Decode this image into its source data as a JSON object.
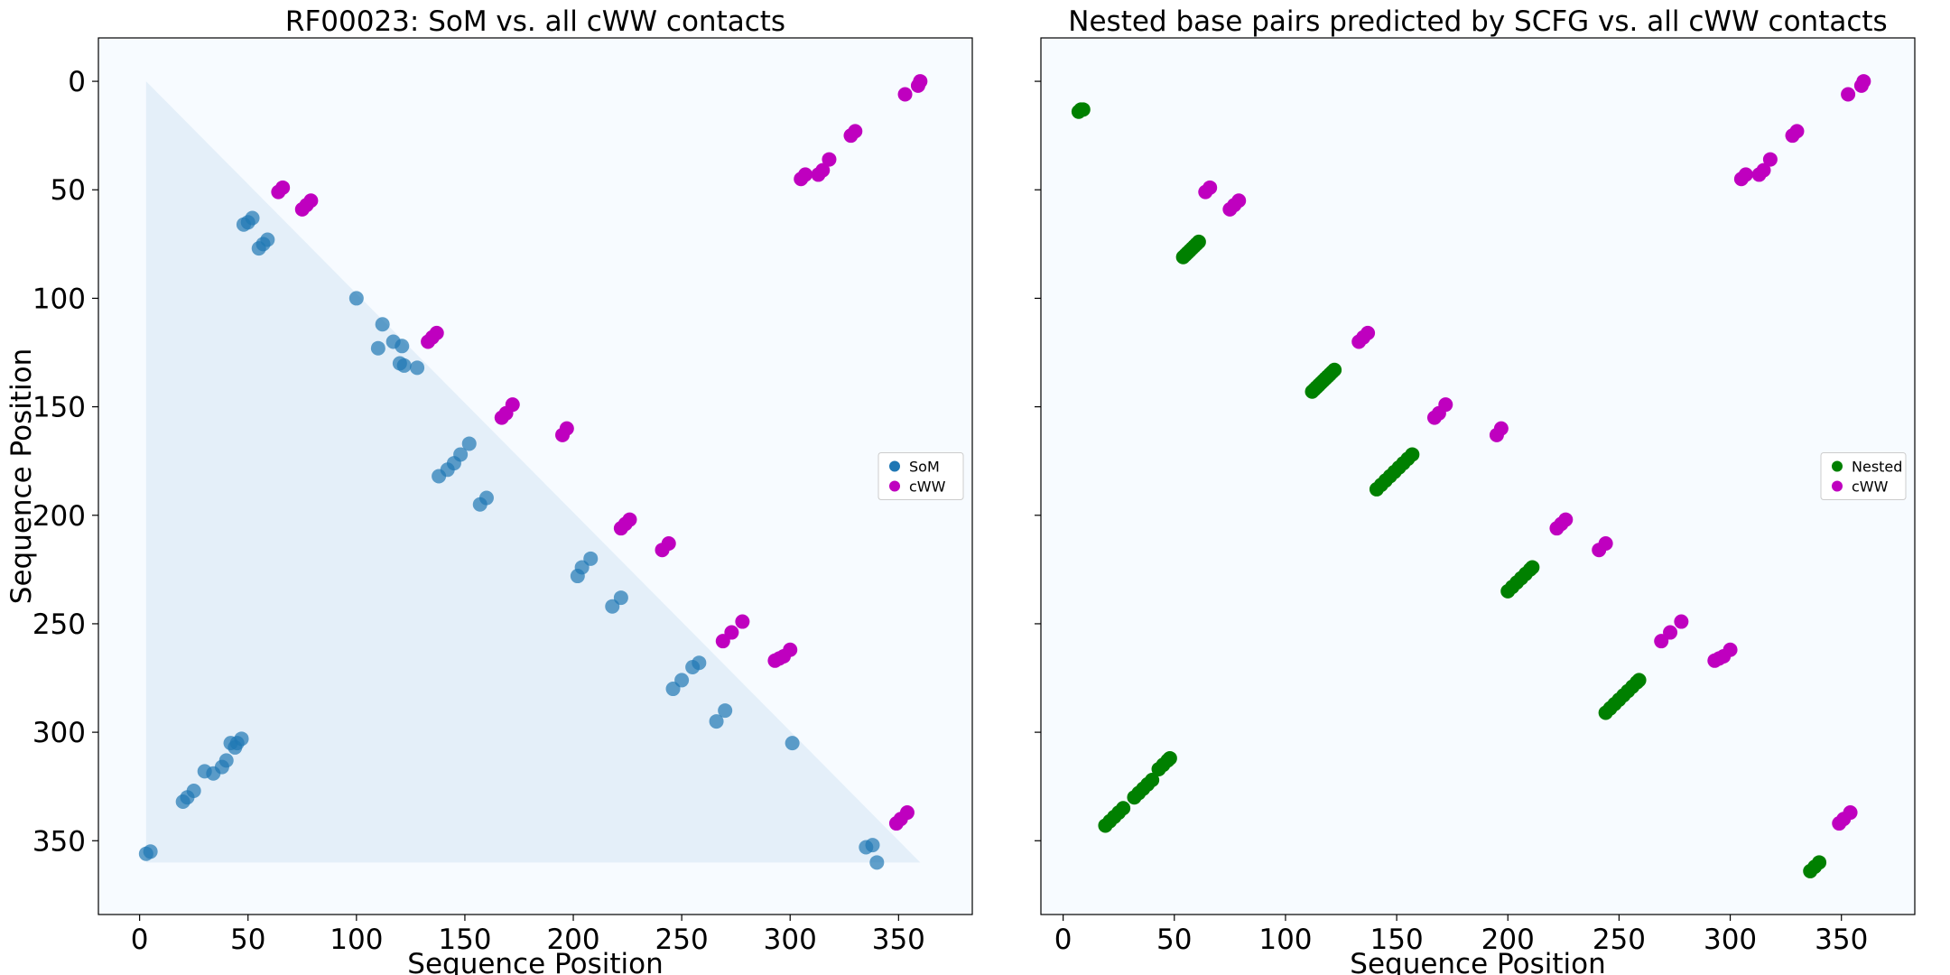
{
  "chart_data": [
    {
      "type": "scatter",
      "title": "RF00023: SoM vs. all cWW contacts",
      "xlabel": "Sequence Position",
      "ylabel": "Sequence Position",
      "xlim": [
        -19,
        384
      ],
      "ylim": [
        384,
        -20
      ],
      "xticks": [
        0,
        50,
        100,
        150,
        200,
        250,
        300,
        350
      ],
      "yticks": [
        0,
        50,
        100,
        150,
        200,
        250,
        300,
        350
      ],
      "show_yticklabels": true,
      "legend": "center right",
      "series": [
        {
          "name": "SoM",
          "color": "#1f77b4",
          "x": [
            5,
            3,
            120,
            122,
            117,
            121,
            112,
            52,
            50,
            48,
            57,
            55,
            59,
            45,
            42,
            47,
            44,
            40,
            38,
            34,
            25,
            22,
            20,
            152,
            148,
            145,
            142,
            138,
            160,
            157,
            208,
            204,
            202,
            222,
            218,
            258,
            255,
            250,
            246,
            270,
            266,
            301,
            338,
            335,
            340,
            128,
            110,
            100,
            30
          ],
          "y": [
            355,
            356,
            130,
            131,
            120,
            122,
            112,
            63,
            65,
            66,
            75,
            77,
            73,
            305,
            305,
            303,
            307,
            313,
            316,
            319,
            327,
            330,
            332,
            167,
            172,
            176,
            179,
            182,
            192,
            195,
            220,
            224,
            228,
            238,
            242,
            268,
            270,
            276,
            280,
            290,
            295,
            305,
            352,
            353,
            360,
            132,
            123,
            100,
            318
          ]
        },
        {
          "name": "cWW",
          "color": "#bf00bf",
          "x": [
            360,
            359,
            353,
            305,
            307,
            313,
            315,
            318,
            328,
            330,
            66,
            64,
            75,
            77,
            79,
            133,
            135,
            137,
            167,
            169,
            172,
            195,
            197,
            222,
            224,
            226,
            241,
            244,
            269,
            273,
            278,
            293,
            295,
            297,
            300,
            349,
            351,
            354
          ],
          "y": [
            0,
            2,
            6,
            45,
            43,
            43,
            41,
            36,
            25,
            23,
            49,
            51,
            59,
            57,
            55,
            120,
            118,
            116,
            155,
            153,
            149,
            163,
            160,
            206,
            204,
            202,
            216,
            213,
            258,
            254,
            249,
            267,
            266,
            265,
            262,
            342,
            340,
            337
          ]
        }
      ]
    },
    {
      "type": "scatter",
      "title": "Nested base pairs predicted by SCFG vs. all cWW contacts",
      "xlabel": "Sequence Position",
      "xlim": [
        -10,
        383
      ],
      "ylim": [
        384,
        -20
      ],
      "xticks": [
        0,
        50,
        100,
        150,
        200,
        250,
        300,
        350
      ],
      "yticks": [
        0,
        50,
        100,
        150,
        200,
        250,
        300,
        350
      ],
      "show_yticklabels": false,
      "legend": "center right",
      "series": [
        {
          "name": "Nested",
          "color": "#008000",
          "x": [
            7,
            8,
            9,
            54,
            55,
            56,
            57,
            58,
            59,
            60,
            61,
            112,
            113,
            114,
            115,
            116,
            117,
            118,
            119,
            120,
            121,
            122,
            141,
            143,
            145,
            147,
            149,
            151,
            153,
            155,
            157,
            200,
            202,
            204,
            206,
            208,
            210,
            211,
            244,
            246,
            248,
            250,
            252,
            254,
            256,
            258,
            259,
            19,
            21,
            23,
            25,
            27,
            32,
            34,
            36,
            38,
            40,
            43,
            45,
            47,
            48,
            336,
            338,
            340
          ],
          "y": [
            14,
            13,
            13,
            81,
            80,
            79,
            78,
            77,
            76,
            75,
            74,
            143,
            142,
            141,
            140,
            139,
            138,
            137,
            136,
            135,
            134,
            133,
            188,
            186,
            184,
            182,
            180,
            178,
            176,
            174,
            172,
            235,
            233,
            231,
            229,
            227,
            225,
            224,
            291,
            289,
            287,
            285,
            283,
            281,
            279,
            277,
            276,
            343,
            341,
            339,
            337,
            335,
            330,
            328,
            326,
            324,
            322,
            317,
            315,
            313,
            312,
            364,
            362,
            360
          ]
        },
        {
          "name": "cWW",
          "color": "#bf00bf",
          "x": [
            360,
            359,
            353,
            305,
            307,
            313,
            315,
            318,
            328,
            330,
            66,
            64,
            75,
            77,
            79,
            133,
            135,
            137,
            167,
            169,
            172,
            195,
            197,
            222,
            224,
            226,
            241,
            244,
            269,
            273,
            278,
            293,
            295,
            297,
            300,
            349,
            351,
            354
          ],
          "y": [
            0,
            2,
            6,
            45,
            43,
            43,
            41,
            36,
            25,
            23,
            49,
            51,
            59,
            57,
            55,
            120,
            118,
            116,
            155,
            153,
            149,
            163,
            160,
            206,
            204,
            202,
            216,
            213,
            258,
            254,
            249,
            267,
            266,
            265,
            262,
            342,
            340,
            337
          ]
        }
      ]
    }
  ]
}
